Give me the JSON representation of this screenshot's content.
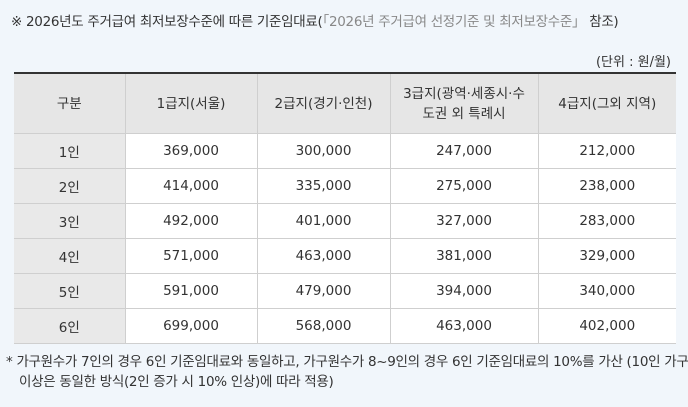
{
  "title": {
    "main": "※ 2026년도 주거급여 최저보장수준에 따른 기준임대료(",
    "reference": "「2026년 주거급여 선정기준 및 최저보장수준」",
    "suffix": " 참조)"
  },
  "unit_note": "(단위 : 원/월)",
  "table": {
    "headers": [
      "구분",
      "1급지(서울)",
      "2급지(경기·인천)",
      "3급지(광역·세종시·수도권 외 특례시",
      "4급지(그외 지역)"
    ],
    "rows": [
      [
        "1인",
        "369,000",
        "300,000",
        "247,000",
        "212,000"
      ],
      [
        "2인",
        "414,000",
        "335,000",
        "275,000",
        "238,000"
      ],
      [
        "3인",
        "492,000",
        "401,000",
        "327,000",
        "283,000"
      ],
      [
        "4인",
        "571,000",
        "463,000",
        "381,000",
        "329,000"
      ],
      [
        "5인",
        "591,000",
        "479,000",
        "394,000",
        "340,000"
      ],
      [
        "6인",
        "699,000",
        "568,000",
        "463,000",
        "402,000"
      ]
    ]
  },
  "footnote": {
    "line1": "* 가구원수가 7인의 경우 6인 기준임대료와 동일하고, 가구원수가 8~9인의 경우 6인 기준임대료의 10%를 가산 (10인 가구",
    "line2": "이상은 동일한 방식(2인 증가 시 10% 인상)에 따라 적용)"
  }
}
